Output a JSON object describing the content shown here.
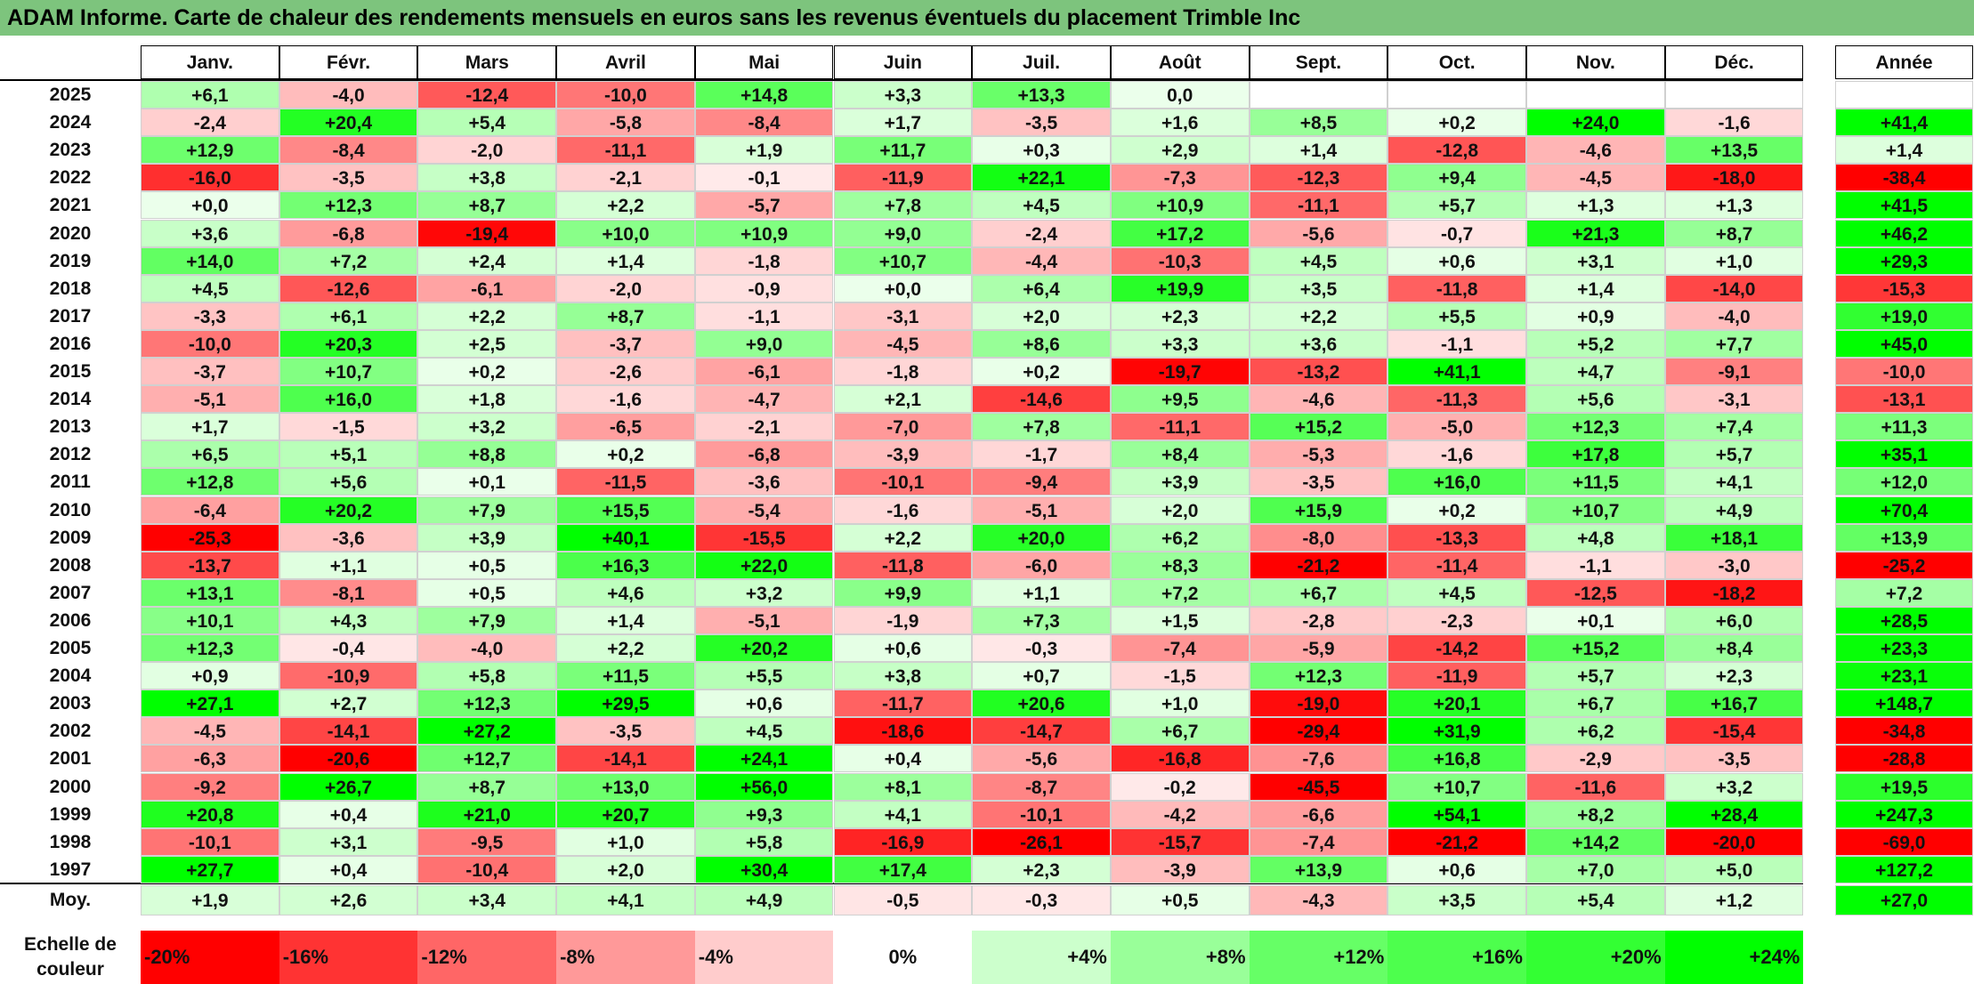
{
  "title": "ADAM Informe. Carte de chaleur des rendements mensuels en euros sans les revenus éventuels du placement Trimble Inc",
  "chart_data": {
    "type": "heatmap",
    "months": [
      "Janv.",
      "Févr.",
      "Mars",
      "Avril",
      "Mai",
      "Juin",
      "Juil.",
      "Août",
      "Sept.",
      "Oct.",
      "Nov.",
      "Déc."
    ],
    "year_column_label": "Année",
    "rows": [
      {
        "year": "2025",
        "months": [
          "+6,1",
          "-4,0",
          "-12,4",
          "-10,0",
          "+14,8",
          "+3,3",
          "+13,3",
          "0,0",
          "",
          "",
          "",
          ""
        ],
        "annual": ""
      },
      {
        "year": "2024",
        "months": [
          "-2,4",
          "+20,4",
          "+5,4",
          "-5,8",
          "-8,4",
          "+1,7",
          "-3,5",
          "+1,6",
          "+8,5",
          "+0,2",
          "+24,0",
          "-1,6"
        ],
        "annual": "+41,4"
      },
      {
        "year": "2023",
        "months": [
          "+12,9",
          "-8,4",
          "-2,0",
          "-11,1",
          "+1,9",
          "+11,7",
          "+0,3",
          "+2,9",
          "+1,4",
          "-12,8",
          "-4,6",
          "+13,5"
        ],
        "annual": "+1,4"
      },
      {
        "year": "2022",
        "months": [
          "-16,0",
          "-3,5",
          "+3,8",
          "-2,1",
          "-0,1",
          "-11,9",
          "+22,1",
          "-7,3",
          "-12,3",
          "+9,4",
          "-4,5",
          "-18,0"
        ],
        "annual": "-38,4"
      },
      {
        "year": "2021",
        "months": [
          "+0,0",
          "+12,3",
          "+8,7",
          "+2,2",
          "-5,7",
          "+7,8",
          "+4,5",
          "+10,9",
          "-11,1",
          "+5,7",
          "+1,3",
          "+1,3"
        ],
        "annual": "+41,5"
      },
      {
        "year": "2020",
        "months": [
          "+3,6",
          "-6,8",
          "-19,4",
          "+10,0",
          "+10,9",
          "+9,0",
          "-2,4",
          "+17,2",
          "-5,6",
          "-0,7",
          "+21,3",
          "+8,7"
        ],
        "annual": "+46,2"
      },
      {
        "year": "2019",
        "months": [
          "+14,0",
          "+7,2",
          "+2,4",
          "+1,4",
          "-1,8",
          "+10,7",
          "-4,4",
          "-10,3",
          "+4,5",
          "+0,6",
          "+3,1",
          "+1,0"
        ],
        "annual": "+29,3"
      },
      {
        "year": "2018",
        "months": [
          "+4,5",
          "-12,6",
          "-6,1",
          "-2,0",
          "-0,9",
          "+0,0",
          "+6,4",
          "+19,9",
          "+3,5",
          "-11,8",
          "+1,4",
          "-14,0"
        ],
        "annual": "-15,3"
      },
      {
        "year": "2017",
        "months": [
          "-3,3",
          "+6,1",
          "+2,2",
          "+8,7",
          "-1,1",
          "-3,1",
          "+2,0",
          "+2,3",
          "+2,2",
          "+5,5",
          "+0,9",
          "-4,0"
        ],
        "annual": "+19,0"
      },
      {
        "year": "2016",
        "months": [
          "-10,0",
          "+20,3",
          "+2,5",
          "-3,7",
          "+9,0",
          "-4,5",
          "+8,6",
          "+3,3",
          "+3,6",
          "-1,1",
          "+5,2",
          "+7,7"
        ],
        "annual": "+45,0"
      },
      {
        "year": "2015",
        "months": [
          "-3,7",
          "+10,7",
          "+0,2",
          "-2,6",
          "-6,1",
          "-1,8",
          "+0,2",
          "-19,7",
          "-13,2",
          "+41,1",
          "+4,7",
          "-9,1"
        ],
        "annual": "-10,0"
      },
      {
        "year": "2014",
        "months": [
          "-5,1",
          "+16,0",
          "+1,8",
          "-1,6",
          "-4,7",
          "+2,1",
          "-14,6",
          "+9,5",
          "-4,6",
          "-11,3",
          "+5,6",
          "-3,1"
        ],
        "annual": "-13,1"
      },
      {
        "year": "2013",
        "months": [
          "+1,7",
          "-1,5",
          "+3,2",
          "-6,5",
          "-2,1",
          "-7,0",
          "+7,8",
          "-11,1",
          "+15,2",
          "-5,0",
          "+12,3",
          "+7,4"
        ],
        "annual": "+11,3"
      },
      {
        "year": "2012",
        "months": [
          "+6,5",
          "+5,1",
          "+8,8",
          "+0,2",
          "-6,8",
          "-3,9",
          "-1,7",
          "+8,4",
          "-5,3",
          "-1,6",
          "+17,8",
          "+5,7"
        ],
        "annual": "+35,1"
      },
      {
        "year": "2011",
        "months": [
          "+12,8",
          "+5,6",
          "+0,1",
          "-11,5",
          "-3,6",
          "-10,1",
          "-9,4",
          "+3,9",
          "-3,5",
          "+16,0",
          "+11,5",
          "+4,1"
        ],
        "annual": "+12,0"
      },
      {
        "year": "2010",
        "months": [
          "-6,4",
          "+20,2",
          "+7,9",
          "+15,5",
          "-5,4",
          "-1,6",
          "-5,1",
          "+2,0",
          "+15,9",
          "+0,2",
          "+10,7",
          "+4,9"
        ],
        "annual": "+70,4"
      },
      {
        "year": "2009",
        "months": [
          "-25,3",
          "-3,6",
          "+3,9",
          "+40,1",
          "-15,5",
          "+2,2",
          "+20,0",
          "+6,2",
          "-8,0",
          "-13,3",
          "+4,8",
          "+18,1"
        ],
        "annual": "+13,9"
      },
      {
        "year": "2008",
        "months": [
          "-13,7",
          "+1,1",
          "+0,5",
          "+16,3",
          "+22,0",
          "-11,8",
          "-6,0",
          "+8,3",
          "-21,2",
          "-11,4",
          "-1,1",
          "-3,0"
        ],
        "annual": "-25,2"
      },
      {
        "year": "2007",
        "months": [
          "+13,1",
          "-8,1",
          "+0,5",
          "+4,6",
          "+3,2",
          "+9,9",
          "+1,1",
          "+7,2",
          "+6,7",
          "+4,5",
          "-12,5",
          "-18,2"
        ],
        "annual": "+7,2"
      },
      {
        "year": "2006",
        "months": [
          "+10,1",
          "+4,3",
          "+7,9",
          "+1,4",
          "-5,1",
          "-1,9",
          "+7,3",
          "+1,5",
          "-2,8",
          "-2,3",
          "+0,1",
          "+6,0"
        ],
        "annual": "+28,5"
      },
      {
        "year": "2005",
        "months": [
          "+12,3",
          "-0,4",
          "-4,0",
          "+2,2",
          "+20,2",
          "+0,6",
          "-0,3",
          "-7,4",
          "-5,9",
          "-14,2",
          "+15,2",
          "+8,4"
        ],
        "annual": "+23,3"
      },
      {
        "year": "2004",
        "months": [
          "+0,9",
          "-10,9",
          "+5,8",
          "+11,5",
          "+5,5",
          "+3,8",
          "+0,7",
          "-1,5",
          "+12,3",
          "-11,9",
          "+5,7",
          "+2,3"
        ],
        "annual": "+23,1"
      },
      {
        "year": "2003",
        "months": [
          "+27,1",
          "+2,7",
          "+12,3",
          "+29,5",
          "+0,6",
          "-11,7",
          "+20,6",
          "+1,0",
          "-19,0",
          "+20,1",
          "+6,7",
          "+16,7"
        ],
        "annual": "+148,7"
      },
      {
        "year": "2002",
        "months": [
          "-4,5",
          "-14,1",
          "+27,2",
          "-3,5",
          "+4,5",
          "-18,6",
          "-14,7",
          "+6,7",
          "-29,4",
          "+31,9",
          "+6,2",
          "-15,4"
        ],
        "annual": "-34,8"
      },
      {
        "year": "2001",
        "months": [
          "-6,3",
          "-20,6",
          "+12,7",
          "-14,1",
          "+24,1",
          "+0,4",
          "-5,6",
          "-16,8",
          "-7,6",
          "+16,8",
          "-2,9",
          "-3,5"
        ],
        "annual": "-28,8"
      },
      {
        "year": "2000",
        "months": [
          "-9,2",
          "+26,7",
          "+8,7",
          "+13,0",
          "+56,0",
          "+8,1",
          "-8,7",
          "-0,2",
          "-45,5",
          "+10,7",
          "-11,6",
          "+3,2"
        ],
        "annual": "+19,5"
      },
      {
        "year": "1999",
        "months": [
          "+20,8",
          "+0,4",
          "+21,0",
          "+20,7",
          "+9,3",
          "+4,1",
          "-10,1",
          "-4,2",
          "-6,6",
          "+54,1",
          "+8,2",
          "+28,4"
        ],
        "annual": "+247,3"
      },
      {
        "year": "1998",
        "months": [
          "-10,1",
          "+3,1",
          "-9,5",
          "+1,0",
          "+5,8",
          "-16,9",
          "-26,1",
          "-15,7",
          "-7,4",
          "-21,2",
          "+14,2",
          "-20,0"
        ],
        "annual": "-69,0"
      },
      {
        "year": "1997",
        "months": [
          "+27,7",
          "+0,4",
          "-10,4",
          "+2,0",
          "+30,4",
          "+17,4",
          "+2,3",
          "-3,9",
          "+13,9",
          "+0,6",
          "+7,0",
          "+5,0"
        ],
        "annual": "+127,2"
      }
    ],
    "average": {
      "label": "Moy.",
      "months": [
        "+1,9",
        "+2,6",
        "+3,4",
        "+4,1",
        "+4,9",
        "-0,5",
        "-0,3",
        "+0,5",
        "-4,3",
        "+3,5",
        "+5,4",
        "+1,2"
      ],
      "annual": "+27,0"
    },
    "scale": {
      "label": "Echelle de couleur",
      "stops": [
        {
          "label": "-20%",
          "color": "#ff0000"
        },
        {
          "label": "-16%",
          "color": "#ff3333"
        },
        {
          "label": "-12%",
          "color": "#ff6666"
        },
        {
          "label": "-8%",
          "color": "#ff9999"
        },
        {
          "label": "-4%",
          "color": "#ffcccc"
        },
        {
          "label": "0%",
          "color": "#ffffff"
        },
        {
          "label": "+4%",
          "color": "#ccffcc"
        },
        {
          "label": "+8%",
          "color": "#99ff99"
        },
        {
          "label": "+12%",
          "color": "#66ff66"
        },
        {
          "label": "+16%",
          "color": "#4dff4d"
        },
        {
          "label": "+20%",
          "color": "#33ff33"
        },
        {
          "label": "+24%",
          "color": "#00ff00"
        }
      ]
    }
  }
}
